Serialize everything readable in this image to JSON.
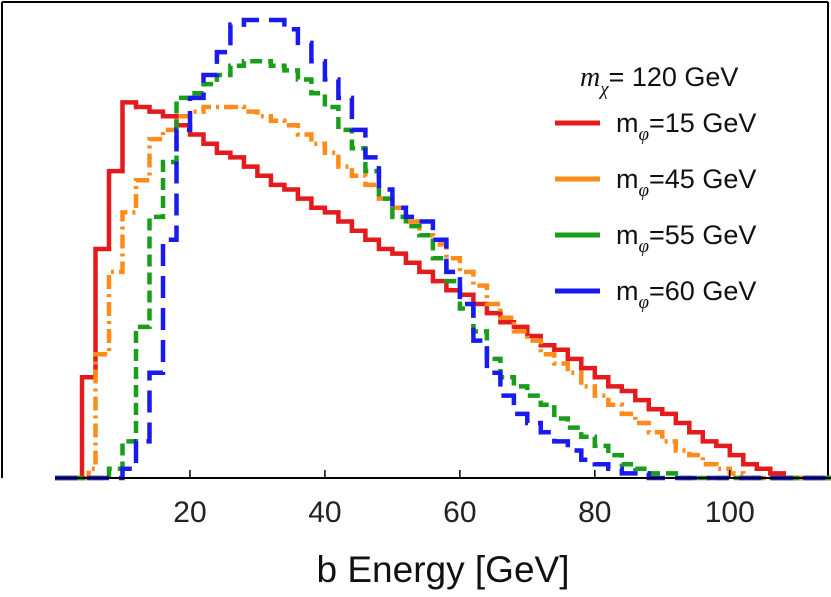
{
  "chart_data": {
    "type": "line",
    "title": "",
    "xlabel": "b Energy [GeV]",
    "ylabel": "",
    "xlim": [
      0,
      115
    ],
    "ylim": [
      0,
      1.0
    ],
    "x_ticks": [
      20,
      40,
      60,
      80,
      100
    ],
    "grid": false,
    "legend": {
      "placement": "top-right",
      "title_symbol": "m",
      "title_subscript": "χ",
      "title_value": "= 120 GeV",
      "label_symbol": "m",
      "label_subscript": "φ"
    },
    "series": [
      {
        "name": "mφ=15 GeV",
        "label_value": "=15 GeV",
        "color": "#e41a1c",
        "dash": "solid",
        "x": [
          0,
          4,
          6,
          8,
          10,
          12,
          14,
          16,
          18,
          20,
          22,
          24,
          26,
          28,
          30,
          32,
          34,
          36,
          38,
          40,
          42,
          44,
          46,
          48,
          50,
          52,
          54,
          56,
          58,
          60,
          62,
          64,
          66,
          68,
          70,
          72,
          74,
          76,
          78,
          80,
          82,
          84,
          86,
          88,
          90,
          92,
          94,
          96,
          98,
          100,
          102,
          104,
          106,
          108,
          110,
          115
        ],
        "values": [
          0,
          0.22,
          0.5,
          0.67,
          0.82,
          0.81,
          0.8,
          0.79,
          0.77,
          0.75,
          0.73,
          0.71,
          0.7,
          0.68,
          0.66,
          0.64,
          0.63,
          0.61,
          0.59,
          0.58,
          0.56,
          0.54,
          0.52,
          0.5,
          0.49,
          0.47,
          0.45,
          0.43,
          0.41,
          0.4,
          0.38,
          0.36,
          0.34,
          0.33,
          0.31,
          0.29,
          0.28,
          0.26,
          0.24,
          0.22,
          0.2,
          0.19,
          0.17,
          0.15,
          0.14,
          0.12,
          0.1,
          0.08,
          0.07,
          0.05,
          0.03,
          0.02,
          0.01,
          0,
          0,
          0
        ]
      },
      {
        "name": "mφ=45 GeV",
        "label_value": "=45 GeV",
        "color": "#ff8c1a",
        "dash": "dashdot",
        "x": [
          0,
          5,
          6,
          8,
          10,
          12,
          14,
          16,
          18,
          20,
          22,
          24,
          26,
          28,
          30,
          32,
          34,
          36,
          38,
          40,
          42,
          44,
          46,
          48,
          50,
          52,
          54,
          56,
          58,
          60,
          62,
          64,
          66,
          68,
          70,
          72,
          74,
          76,
          78,
          80,
          82,
          84,
          86,
          88,
          90,
          92,
          94,
          96,
          98,
          100,
          102,
          104,
          106,
          108,
          115
        ],
        "values": [
          0,
          0.02,
          0.27,
          0.45,
          0.58,
          0.65,
          0.74,
          0.76,
          0.79,
          0.8,
          0.81,
          0.81,
          0.81,
          0.8,
          0.79,
          0.78,
          0.77,
          0.75,
          0.73,
          0.71,
          0.68,
          0.66,
          0.64,
          0.61,
          0.59,
          0.56,
          0.53,
          0.51,
          0.48,
          0.45,
          0.42,
          0.38,
          0.35,
          0.32,
          0.3,
          0.27,
          0.25,
          0.23,
          0.2,
          0.18,
          0.16,
          0.14,
          0.12,
          0.1,
          0.08,
          0.06,
          0.05,
          0.03,
          0.02,
          0.01,
          0,
          0,
          0,
          0,
          0
        ]
      },
      {
        "name": "mφ=55 GeV",
        "label_value": "=55 GeV",
        "color": "#1a9e1a",
        "dash": "dashed",
        "x": [
          0,
          8,
          10,
          12,
          14,
          16,
          18,
          20,
          22,
          24,
          26,
          28,
          30,
          32,
          34,
          36,
          38,
          40,
          42,
          44,
          46,
          48,
          50,
          52,
          54,
          56,
          58,
          60,
          62,
          64,
          66,
          68,
          70,
          72,
          74,
          76,
          78,
          80,
          82,
          84,
          86,
          88,
          90,
          92,
          94,
          96,
          115
        ],
        "values": [
          0,
          0.02,
          0.08,
          0.33,
          0.57,
          0.69,
          0.83,
          0.84,
          0.86,
          0.88,
          0.9,
          0.91,
          0.91,
          0.9,
          0.89,
          0.87,
          0.84,
          0.81,
          0.76,
          0.72,
          0.67,
          0.61,
          0.57,
          0.55,
          0.53,
          0.48,
          0.43,
          0.37,
          0.32,
          0.26,
          0.22,
          0.2,
          0.18,
          0.16,
          0.13,
          0.11,
          0.09,
          0.07,
          0.05,
          0.03,
          0.02,
          0.01,
          0.01,
          0,
          0,
          0,
          0
        ]
      },
      {
        "name": "mφ=60 GeV",
        "label_value": "=60 GeV",
        "color": "#1a1aee",
        "dash": "longdash",
        "x": [
          0,
          10,
          12,
          14,
          16,
          18,
          20,
          22,
          24,
          26,
          28,
          30,
          32,
          34,
          36,
          38,
          40,
          42,
          44,
          46,
          48,
          50,
          52,
          54,
          56,
          58,
          60,
          62,
          64,
          66,
          68,
          70,
          72,
          74,
          76,
          78,
          80,
          82,
          84,
          86,
          88,
          90,
          115
        ],
        "values": [
          0,
          0.02,
          0.08,
          0.23,
          0.52,
          0.76,
          0.83,
          0.88,
          0.93,
          0.99,
          1.0,
          1.0,
          1.0,
          0.98,
          0.95,
          0.91,
          0.87,
          0.83,
          0.76,
          0.7,
          0.63,
          0.59,
          0.57,
          0.56,
          0.52,
          0.45,
          0.38,
          0.3,
          0.23,
          0.18,
          0.14,
          0.12,
          0.1,
          0.08,
          0.06,
          0.04,
          0.03,
          0.02,
          0.01,
          0.01,
          0,
          0,
          0
        ]
      }
    ]
  }
}
